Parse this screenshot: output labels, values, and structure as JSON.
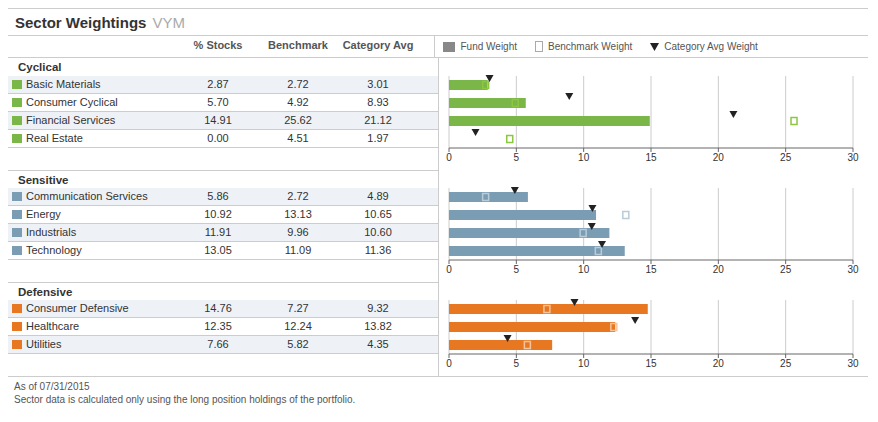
{
  "chart_data": {
    "type": "bar",
    "orientation": "horizontal",
    "title": "Sector Weightings",
    "subtitle": "VYM",
    "column_headers": [
      "% Stocks",
      "Benchmark",
      "Category Avg"
    ],
    "annotations": [
      "As of 07/31/2015",
      "Sector data is calculated only using the long position holdings of the portfolio."
    ],
    "xlim": [
      0,
      30
    ],
    "xticks": [
      0,
      5,
      10,
      15,
      20,
      25,
      30
    ],
    "grid": true,
    "legend": "top",
    "data_labels": true,
    "groups": [
      {
        "name": "Cyclical",
        "categories": [
          "Basic Materials",
          "Consumer Cyclical",
          "Financial Services",
          "Real Estate"
        ],
        "series": [
          {
            "name": "Fund Weight",
            "type": "bar",
            "color": "#7ab648",
            "values": [
              2.87,
              5.7,
              14.91,
              0.0
            ],
            "value_labels": [
              "2.87",
              "5.70",
              "14.91",
              "0.00"
            ]
          },
          {
            "name": "Benchmark Weight",
            "type": "marker",
            "marker": "bracket",
            "color": "#8dc63f",
            "values": [
              2.72,
              4.92,
              25.62,
              4.51
            ],
            "value_labels": [
              "2.72",
              "4.92",
              "25.62",
              "4.51"
            ]
          },
          {
            "name": "Category Avg Weight",
            "type": "marker",
            "marker": "triangle-down",
            "color": "#222222",
            "values": [
              3.01,
              8.93,
              21.12,
              1.97
            ],
            "value_labels": [
              "3.01",
              "8.93",
              "21.12",
              "1.97"
            ]
          }
        ]
      },
      {
        "name": "Sensitive",
        "categories": [
          "Communication Services",
          "Energy",
          "Industrials",
          "Technology"
        ],
        "series": [
          {
            "name": "Fund Weight",
            "type": "bar",
            "color": "#7b9db4",
            "values": [
              5.86,
              10.92,
              11.91,
              13.05
            ],
            "value_labels": [
              "5.86",
              "10.92",
              "11.91",
              "13.05"
            ]
          },
          {
            "name": "Benchmark Weight",
            "type": "marker",
            "marker": "bracket",
            "color": "#b8ccd8",
            "values": [
              2.72,
              13.13,
              9.96,
              11.09
            ],
            "value_labels": [
              "2.72",
              "13.13",
              "9.96",
              "11.09"
            ]
          },
          {
            "name": "Category Avg Weight",
            "type": "marker",
            "marker": "triangle-down",
            "color": "#222222",
            "values": [
              4.89,
              10.65,
              10.6,
              11.36
            ],
            "value_labels": [
              "4.89",
              "10.65",
              "10.60",
              "11.36"
            ]
          }
        ]
      },
      {
        "name": "Defensive",
        "categories": [
          "Consumer Defensive",
          "Healthcare",
          "Utilities"
        ],
        "series": [
          {
            "name": "Fund Weight",
            "type": "bar",
            "color": "#e87722",
            "values": [
              14.76,
              12.35,
              7.66
            ],
            "value_labels": [
              "14.76",
              "12.35",
              "7.66"
            ]
          },
          {
            "name": "Benchmark Weight",
            "type": "marker",
            "marker": "bracket",
            "color": "#f5c49a",
            "values": [
              7.27,
              12.24,
              5.82
            ],
            "value_labels": [
              "7.27",
              "12.24",
              "5.82"
            ]
          },
          {
            "name": "Category Avg Weight",
            "type": "marker",
            "marker": "triangle-down",
            "color": "#222222",
            "values": [
              9.32,
              13.82,
              4.35
            ],
            "value_labels": [
              "9.32",
              "13.82",
              "4.35"
            ]
          }
        ]
      }
    ]
  }
}
